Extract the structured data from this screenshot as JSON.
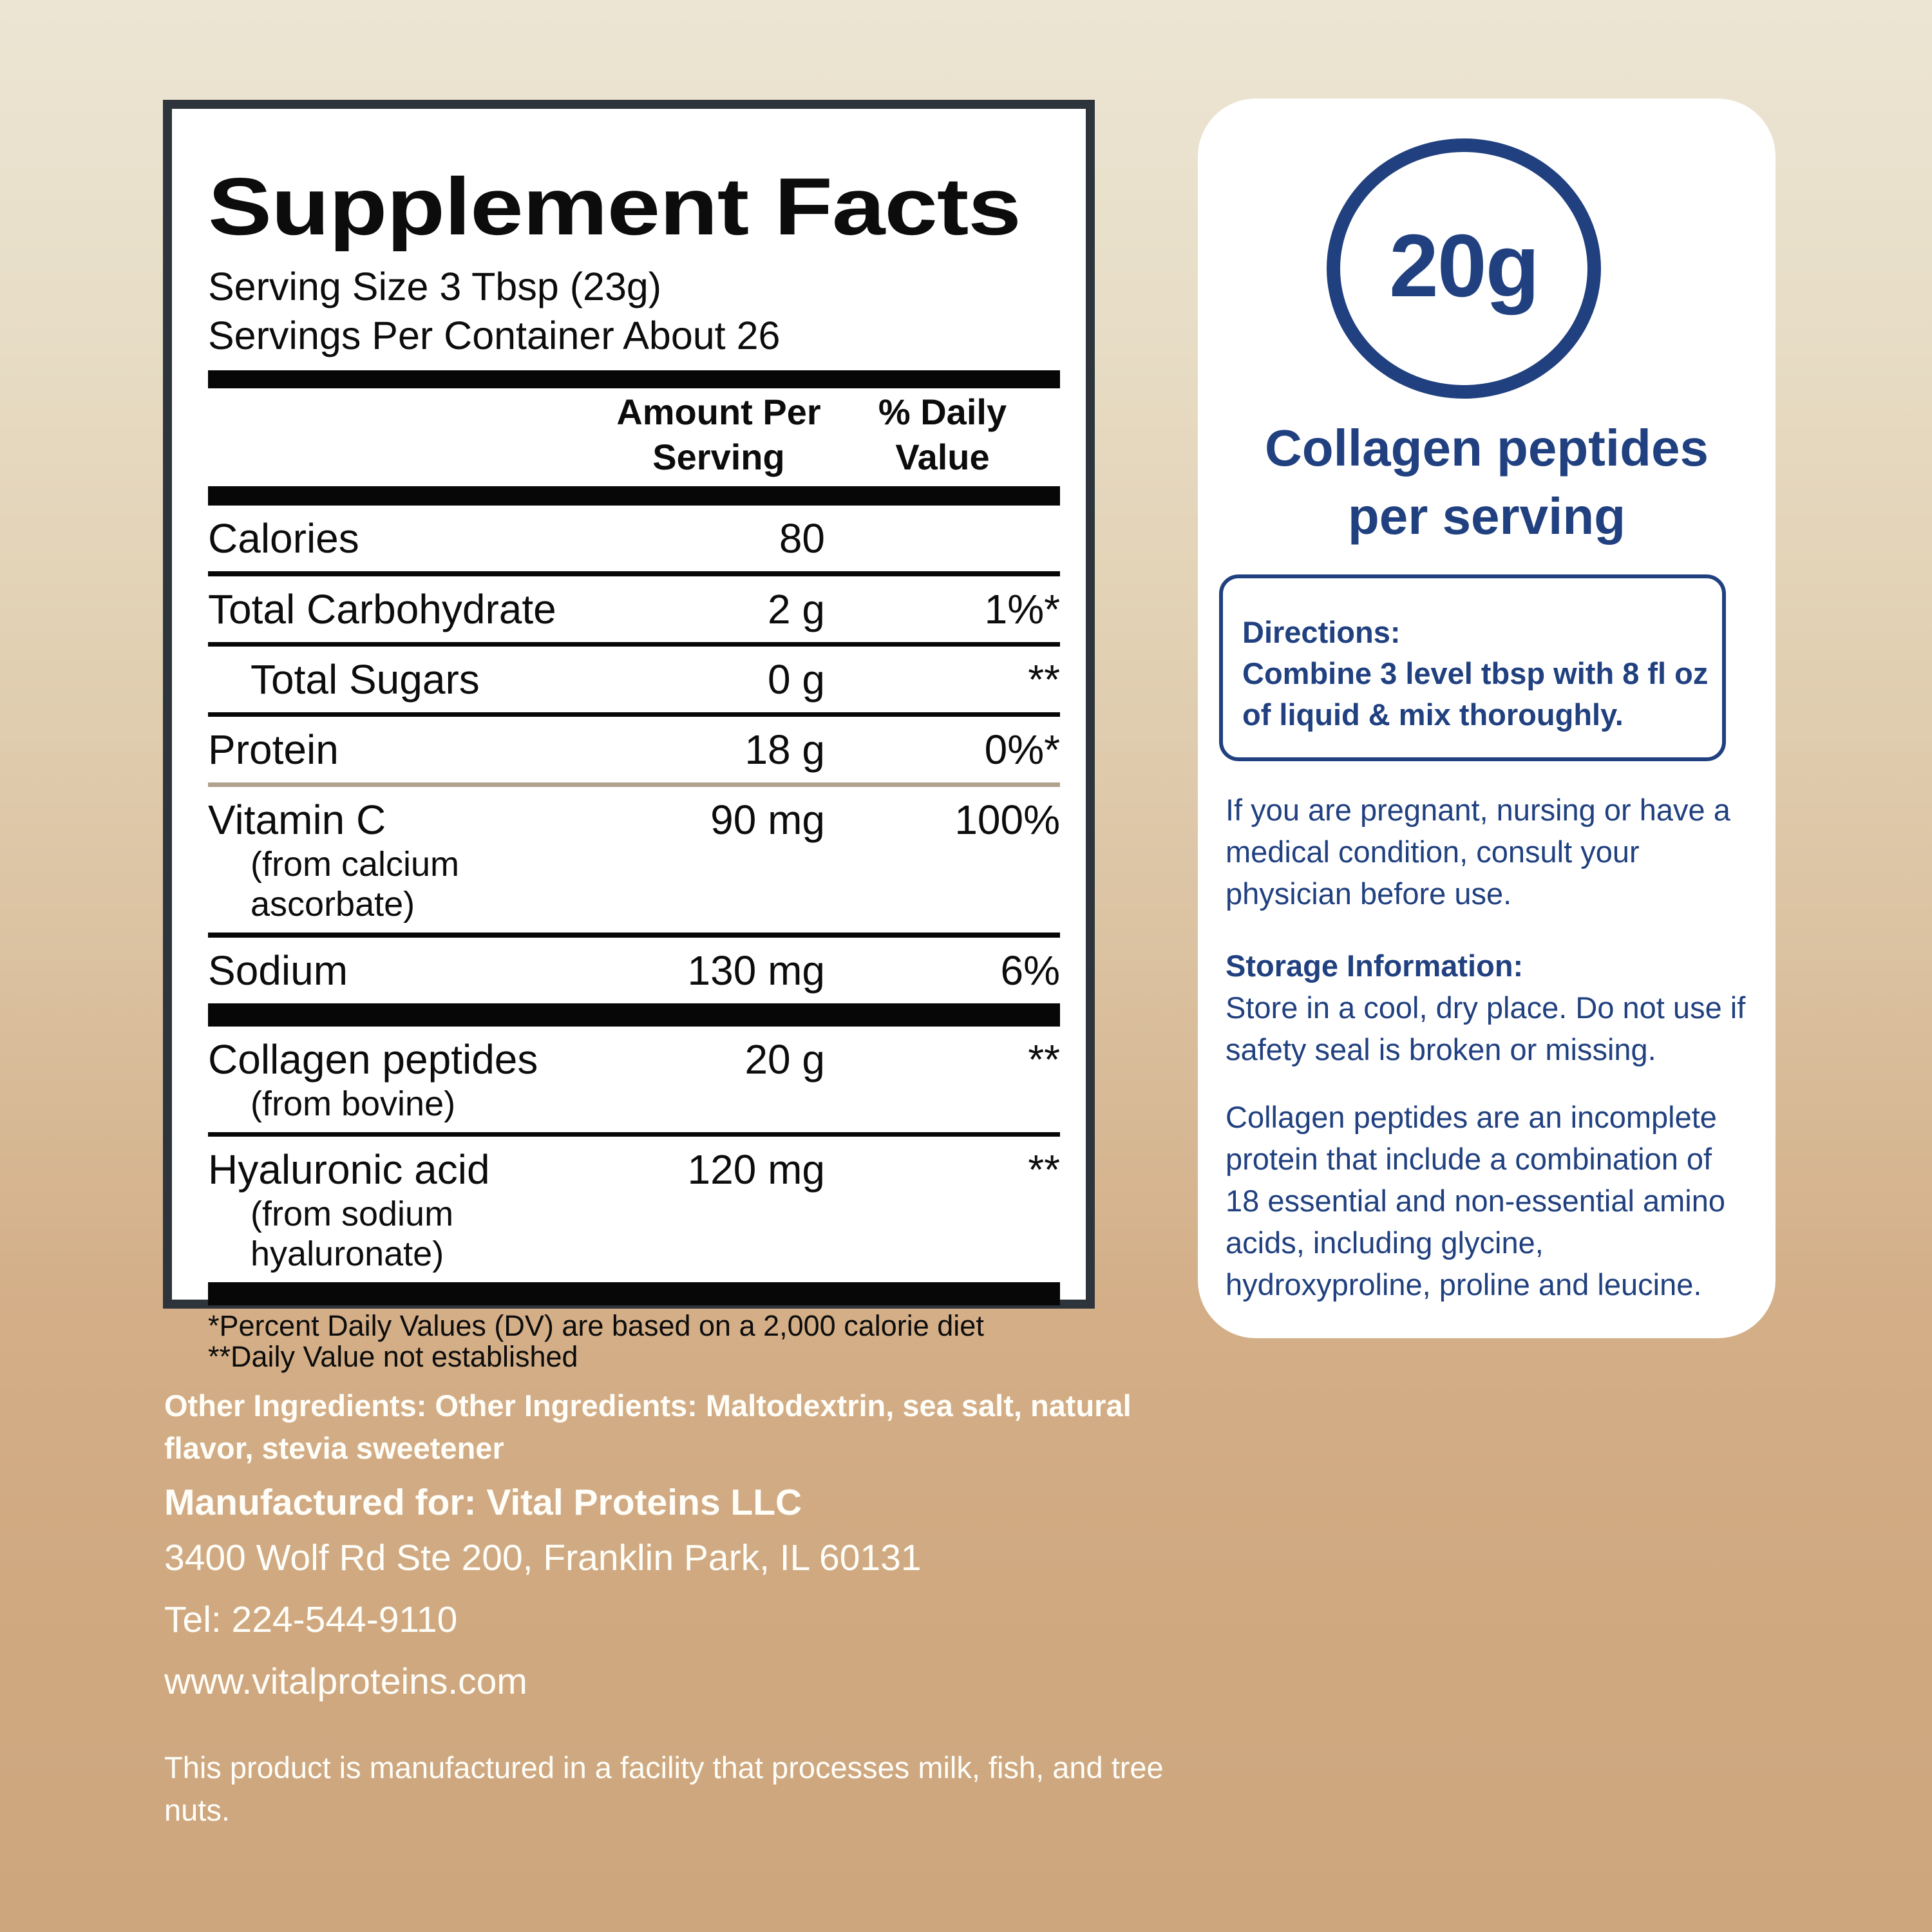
{
  "colors": {
    "navy": "#20407f",
    "panel_border": "#2d343b",
    "tan_separator": "#b1a18d",
    "background_top": "#ece5d3",
    "background_bottom": "#cda67e",
    "card_background": "#ffffff",
    "footer_text": "#fffef9"
  },
  "facts_panel": {
    "title": "Supplement Facts",
    "serving_size": "Serving Size 3 Tbsp (23g)",
    "servings_per_container": "Servings Per Container About 26",
    "amount_header": "Amount Per\nServing",
    "dv_header": "% Daily\nValue",
    "rows": [
      {
        "name": "Calories",
        "sub": "",
        "amount": "80",
        "dv": ""
      },
      {
        "name": "Total Carbohydrate",
        "sub": "",
        "amount": "2 g",
        "dv": "1%*"
      },
      {
        "name": "Total Sugars",
        "sub": "",
        "amount": "0 g",
        "dv": "**"
      },
      {
        "name": "Protein",
        "sub": "",
        "amount": "18 g",
        "dv": "0%*"
      },
      {
        "name": "Vitamin C",
        "sub": "(from calcium ascorbate)",
        "amount": "90 mg",
        "dv": "100%"
      },
      {
        "name": "Sodium",
        "sub": "",
        "amount": "130 mg",
        "dv": "6%"
      },
      {
        "name": "Collagen peptides",
        "sub": "(from bovine)",
        "amount": "20 g",
        "dv": "**"
      },
      {
        "name": "Hyaluronic acid",
        "sub": "(from sodium hyaluronate)",
        "amount": "120 mg",
        "dv": "**"
      }
    ],
    "footnote_1": "*Percent Daily Values (DV) are based on a 2,000 calorie diet",
    "footnote_2": "**Daily Value not established"
  },
  "info_card": {
    "badge_value": "20g",
    "badge_caption": "Collagen peptides per serving",
    "directions_heading": "Directions:",
    "directions_body": "Combine 3 level tbsp with 8 fl oz of liquid & mix thoroughly.",
    "warning": "If you are pregnant, nursing or have a medical condition, consult your physician before use.",
    "storage_heading": "Storage Information:",
    "storage_body": "Store in a cool, dry place. Do not use if safety seal is broken or missing.",
    "description": "Collagen peptides are an incomplete protein that include a combination of 18 essential and non-essential amino acids, including glycine, hydroxyproline, proline and leucine."
  },
  "footer": {
    "other_ingredients": "Other Ingredients: Other Ingredients: Maltodextrin, sea salt, natural flavor, stevia sweetener",
    "manufactured_for": "Manufactured for: Vital Proteins LLC",
    "address": "3400 Wolf Rd Ste 200, Franklin Park, IL 60131",
    "tel": "Tel: 224-544-9110",
    "website": "www.vitalproteins.com",
    "allergen": "This product is manufactured in a facility that processes milk, fish, and tree nuts."
  }
}
